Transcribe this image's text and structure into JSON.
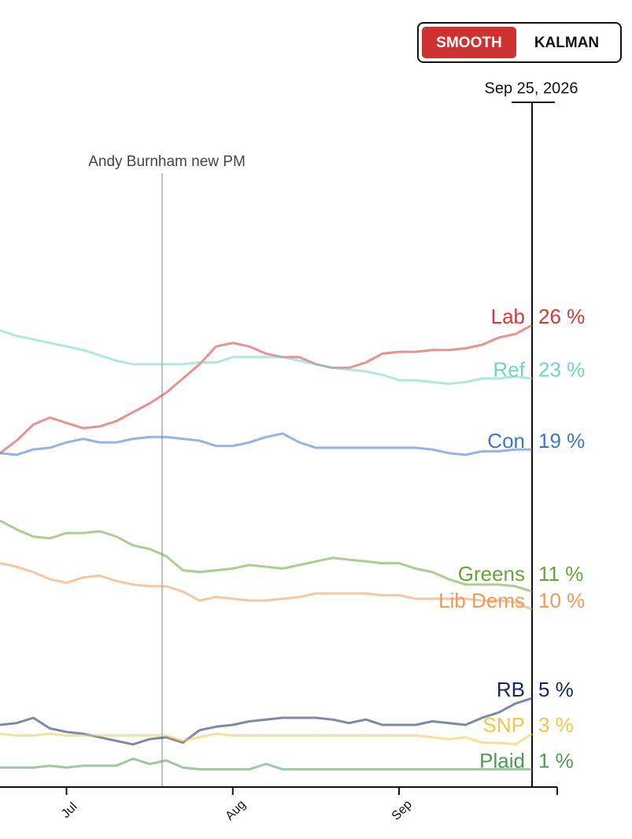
{
  "controls": {
    "options": [
      "SMOOTH",
      "KALMAN"
    ],
    "selected": "SMOOTH"
  },
  "chart_data": {
    "type": "line",
    "cursor_label": "Sep 25, 2026",
    "annotation": "Andy Burnham new PM",
    "categories": [
      null,
      null,
      null,
      null,
      "Jul",
      null,
      null,
      null,
      null,
      null,
      null,
      null,
      null,
      null,
      "Aug",
      null,
      null,
      null,
      null,
      null,
      null,
      null,
      null,
      null,
      "Sep",
      null,
      null,
      null,
      null,
      null,
      null,
      null,
      null
    ],
    "ylim": [
      0,
      38.5
    ],
    "series": [
      {
        "name": "Lab",
        "color": "#d33a36",
        "values": [
          18.8,
          19.5,
          20.4,
          20.8,
          20.5,
          20.2,
          20.3,
          20.6,
          21.1,
          21.6,
          22.2,
          23.0,
          23.8,
          24.8,
          25.0,
          24.8,
          24.4,
          24.2,
          24.2,
          23.8,
          23.6,
          23.6,
          23.9,
          24.4,
          24.5,
          24.5,
          24.6,
          24.6,
          24.7,
          24.9,
          25.3,
          25.5,
          26
        ],
        "value_labels": [
          null,
          null,
          null,
          null,
          null,
          null,
          null,
          null,
          null,
          null,
          null,
          null,
          null,
          null,
          null,
          null,
          null,
          null,
          null,
          null,
          null,
          null,
          null,
          null,
          null,
          null,
          null,
          null,
          null,
          null,
          null,
          null,
          "26 %"
        ]
      },
      {
        "name": "Ref",
        "color": "#6fd6c4",
        "values": [
          25.7,
          25.4,
          25.2,
          25.0,
          24.8,
          24.6,
          24.3,
          24.0,
          23.8,
          23.8,
          23.8,
          23.8,
          23.9,
          23.9,
          24.2,
          24.2,
          24.2,
          24.2,
          24.0,
          23.8,
          23.6,
          23.5,
          23.4,
          23.2,
          22.9,
          22.9,
          22.8,
          22.7,
          22.8,
          23.0,
          23.0,
          23.1,
          23
        ],
        "value_labels": [
          null,
          null,
          null,
          null,
          null,
          null,
          null,
          null,
          null,
          null,
          null,
          null,
          null,
          null,
          null,
          null,
          null,
          null,
          null,
          null,
          null,
          null,
          null,
          null,
          null,
          null,
          null,
          null,
          null,
          null,
          null,
          null,
          "23 %"
        ]
      },
      {
        "name": "Con",
        "color": "#3f75d0",
        "values": [
          18.8,
          18.7,
          19.0,
          19.1,
          19.4,
          19.6,
          19.4,
          19.4,
          19.6,
          19.7,
          19.7,
          19.6,
          19.5,
          19.2,
          19.2,
          19.4,
          19.7,
          19.9,
          19.4,
          19.1,
          19.1,
          19.1,
          19.1,
          19.1,
          19.1,
          19.1,
          19.0,
          18.8,
          18.7,
          18.9,
          18.9,
          19.0,
          19
        ],
        "value_labels": [
          null,
          null,
          null,
          null,
          null,
          null,
          null,
          null,
          null,
          null,
          null,
          null,
          null,
          null,
          null,
          null,
          null,
          null,
          null,
          null,
          null,
          null,
          null,
          null,
          null,
          null,
          null,
          null,
          null,
          null,
          null,
          null,
          "19 %"
        ]
      },
      {
        "name": "Greens",
        "color": "#66a638",
        "values": [
          15.0,
          14.5,
          14.1,
          14.0,
          14.3,
          14.3,
          14.4,
          14.1,
          13.6,
          13.4,
          13.0,
          12.2,
          12.1,
          12.2,
          12.3,
          12.5,
          12.4,
          12.3,
          12.5,
          12.7,
          12.9,
          12.8,
          12.7,
          12.6,
          12.6,
          12.3,
          12.1,
          11.7,
          11.4,
          11.4,
          11.4,
          11.3,
          11
        ],
        "value_labels": [
          null,
          null,
          null,
          null,
          null,
          null,
          null,
          null,
          null,
          null,
          null,
          null,
          null,
          null,
          null,
          null,
          null,
          null,
          null,
          null,
          null,
          null,
          null,
          null,
          null,
          null,
          null,
          null,
          null,
          null,
          null,
          null,
          "11 %"
        ]
      },
      {
        "name": "Lib Dems",
        "color": "#ef9a55",
        "values": [
          12.6,
          12.4,
          12.1,
          11.7,
          11.5,
          11.8,
          11.9,
          11.6,
          11.4,
          11.3,
          11.3,
          11.0,
          10.5,
          10.7,
          10.6,
          10.5,
          10.5,
          10.6,
          10.7,
          10.9,
          10.9,
          10.9,
          10.9,
          10.8,
          10.8,
          10.6,
          10.6,
          10.6,
          10.6,
          10.5,
          10.5,
          10.4,
          10
        ],
        "value_labels": [
          null,
          null,
          null,
          null,
          null,
          null,
          null,
          null,
          null,
          null,
          null,
          null,
          null,
          null,
          null,
          null,
          null,
          null,
          null,
          null,
          null,
          null,
          null,
          null,
          null,
          null,
          null,
          null,
          null,
          null,
          null,
          null,
          "10 %"
        ]
      },
      {
        "name": "RB",
        "color": "#14285f",
        "values": [
          3.5,
          3.6,
          3.9,
          3.3,
          3.1,
          3.0,
          2.8,
          2.6,
          2.4,
          2.7,
          2.8,
          2.5,
          3.2,
          3.4,
          3.5,
          3.7,
          3.8,
          3.9,
          3.9,
          3.9,
          3.8,
          3.6,
          3.8,
          3.5,
          3.5,
          3.5,
          3.7,
          3.6,
          3.5,
          3.9,
          4.2,
          4.7,
          5
        ],
        "value_labels": [
          null,
          null,
          null,
          null,
          null,
          null,
          null,
          null,
          null,
          null,
          null,
          null,
          null,
          null,
          null,
          null,
          null,
          null,
          null,
          null,
          null,
          null,
          null,
          null,
          null,
          null,
          null,
          null,
          null,
          null,
          null,
          null,
          "5 %"
        ]
      },
      {
        "name": "SNP",
        "color": "#f0c64a",
        "values": [
          3.0,
          2.9,
          2.9,
          3.0,
          2.9,
          2.9,
          2.9,
          2.9,
          2.9,
          2.9,
          2.9,
          2.6,
          2.8,
          3.0,
          2.9,
          2.9,
          2.9,
          2.9,
          2.9,
          2.9,
          2.9,
          2.9,
          2.9,
          2.9,
          2.9,
          2.9,
          2.8,
          2.7,
          2.8,
          2.5,
          2.5,
          2.4,
          3
        ],
        "value_labels": [
          null,
          null,
          null,
          null,
          null,
          null,
          null,
          null,
          null,
          null,
          null,
          null,
          null,
          null,
          null,
          null,
          null,
          null,
          null,
          null,
          null,
          null,
          null,
          null,
          null,
          null,
          null,
          null,
          null,
          null,
          null,
          null,
          "3 %"
        ]
      },
      {
        "name": "Plaid",
        "color": "#4f9a52",
        "values": [
          1.1,
          1.1,
          1.1,
          1.2,
          1.1,
          1.2,
          1.2,
          1.2,
          1.6,
          1.3,
          1.5,
          1.1,
          1.0,
          1.0,
          1.0,
          1.0,
          1.3,
          1.0,
          1.0,
          1.0,
          1.0,
          1.0,
          1.0,
          1.0,
          1.0,
          1.0,
          1.0,
          1.0,
          1.0,
          1.0,
          1.0,
          1.0,
          1
        ],
        "value_labels": [
          null,
          null,
          null,
          null,
          null,
          null,
          null,
          null,
          null,
          null,
          null,
          null,
          null,
          null,
          null,
          null,
          null,
          null,
          null,
          null,
          null,
          null,
          null,
          null,
          null,
          null,
          null,
          null,
          null,
          null,
          null,
          null,
          "1 %"
        ]
      }
    ]
  }
}
